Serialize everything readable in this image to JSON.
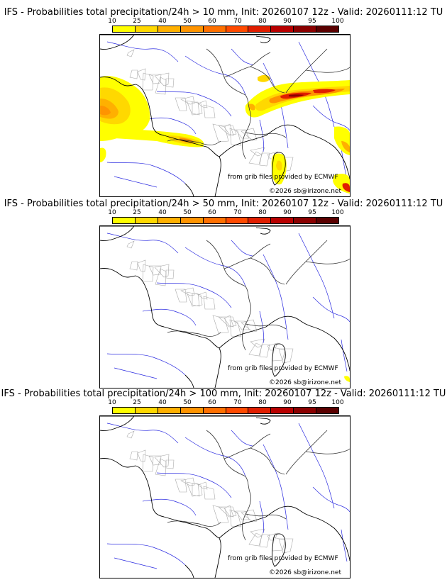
{
  "colorbar": {
    "labels": [
      "10",
      "25",
      "40",
      "50",
      "60",
      "70",
      "80",
      "90",
      "95",
      "100"
    ],
    "colors": [
      "#ffff00",
      "#ffd800",
      "#ffb000",
      "#ff9400",
      "#ff7000",
      "#ff4a00",
      "#e01e00",
      "#b80000",
      "#8a0000",
      "#5a0000"
    ]
  },
  "credits": {
    "source": "from grib files provided by ECMWF",
    "copyright": "©2026 sb@irizone.net"
  },
  "panels": [
    {
      "title": "IFS - Probabilities total precipitation/24h > 10 mm, Init: 20260107 12z - Valid: 20260111:12 TU"
    },
    {
      "title": "IFS - Probabilities total precipitation/24h > 50 mm, Init: 20260107 12z - Valid: 20260111:12 TU"
    },
    {
      "title": "IFS - Probabilities total precipitation/24h > 100 mm, Init: 20260107 12z - Valid: 20260111:12 TU"
    }
  ]
}
